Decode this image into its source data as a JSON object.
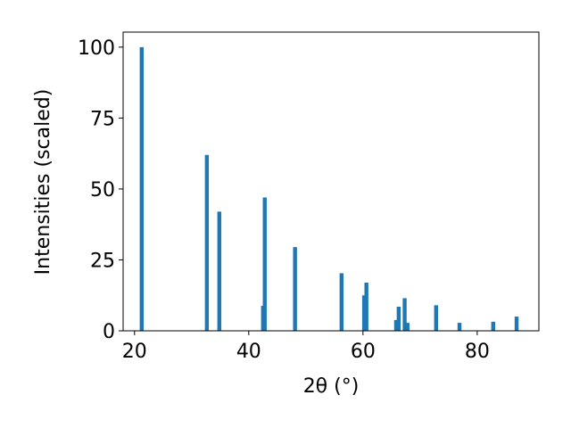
{
  "chart_data": {
    "type": "bar",
    "x": [
      21.25,
      32.66,
      34.84,
      42.5,
      42.8,
      48.1,
      56.25,
      60.2,
      60.6,
      65.8,
      66.25,
      67.3,
      67.8,
      72.8,
      76.9,
      82.8,
      86.9
    ],
    "values": [
      100,
      62,
      42,
      8.8,
      47,
      29.5,
      20.3,
      12.5,
      17,
      3.8,
      8.5,
      11.5,
      2.8,
      9,
      2.8,
      3.2,
      5
    ],
    "color": "#1f77b4",
    "xlim": [
      18,
      90.8
    ],
    "xticks": [
      20,
      40,
      60,
      80
    ],
    "ylim": [
      0,
      105.3
    ],
    "yticks": [
      0,
      25,
      50,
      75,
      100
    ],
    "xlabel": "2θ (°)",
    "ylabel": "Intensities (scaled)"
  }
}
